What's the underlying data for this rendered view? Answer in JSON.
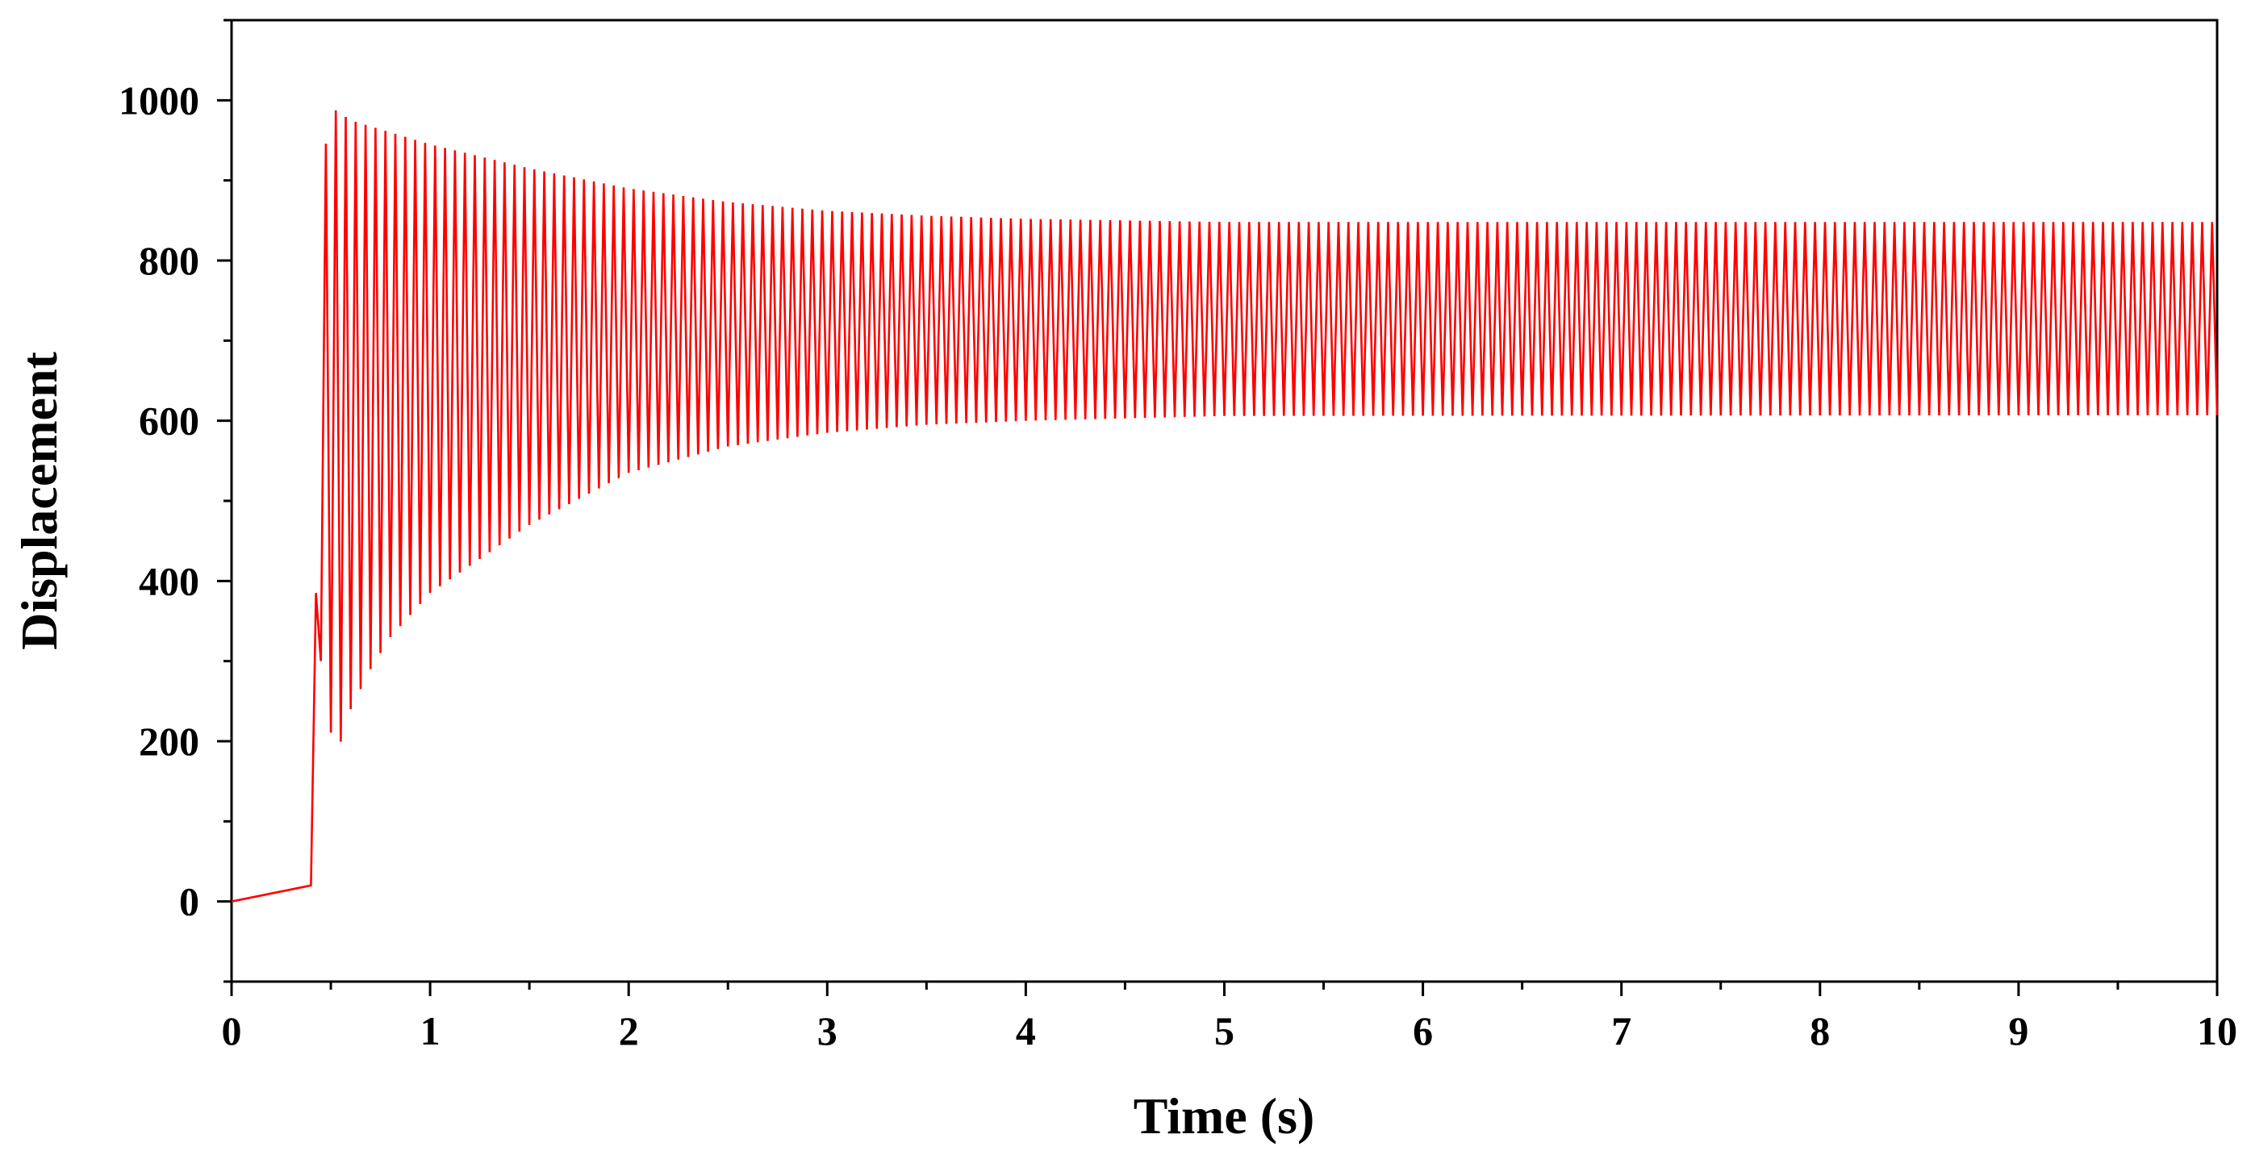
{
  "chart_data": {
    "type": "line",
    "title": "",
    "xlabel": "Time (s)",
    "ylabel": "Displacement",
    "xlim": [
      0,
      10
    ],
    "ylim": [
      -100,
      1100
    ],
    "x_ticks": [
      0,
      1,
      2,
      3,
      4,
      5,
      6,
      7,
      8,
      9,
      10
    ],
    "y_ticks": [
      0,
      200,
      400,
      600,
      800,
      1000
    ],
    "grid": false,
    "legend": "none",
    "series": [
      {
        "color": "#ff0000",
        "oscillation_period": 0.05,
        "envelope_upper": [
          [
            0.0,
            0
          ],
          [
            0.3,
            0
          ],
          [
            0.4,
            70
          ],
          [
            0.45,
            700
          ],
          [
            0.48,
            995
          ],
          [
            0.6,
            975
          ],
          [
            0.8,
            960
          ],
          [
            1.0,
            945
          ],
          [
            1.5,
            915
          ],
          [
            2.0,
            890
          ],
          [
            2.5,
            873
          ],
          [
            3.0,
            862
          ],
          [
            3.5,
            856
          ],
          [
            4.0,
            852
          ],
          [
            4.5,
            850
          ],
          [
            5.0,
            848
          ],
          [
            10.0,
            848
          ]
        ],
        "envelope_lower": [
          [
            0.0,
            0
          ],
          [
            0.3,
            0
          ],
          [
            0.4,
            20
          ],
          [
            0.45,
            300
          ],
          [
            0.52,
            175
          ],
          [
            0.6,
            240
          ],
          [
            0.7,
            290
          ],
          [
            0.8,
            330
          ],
          [
            1.0,
            385
          ],
          [
            1.5,
            470
          ],
          [
            2.0,
            535
          ],
          [
            2.5,
            568
          ],
          [
            3.0,
            585
          ],
          [
            3.5,
            595
          ],
          [
            4.0,
            600
          ],
          [
            4.5,
            603
          ],
          [
            5.0,
            606
          ],
          [
            10.0,
            607
          ]
        ]
      }
    ]
  }
}
